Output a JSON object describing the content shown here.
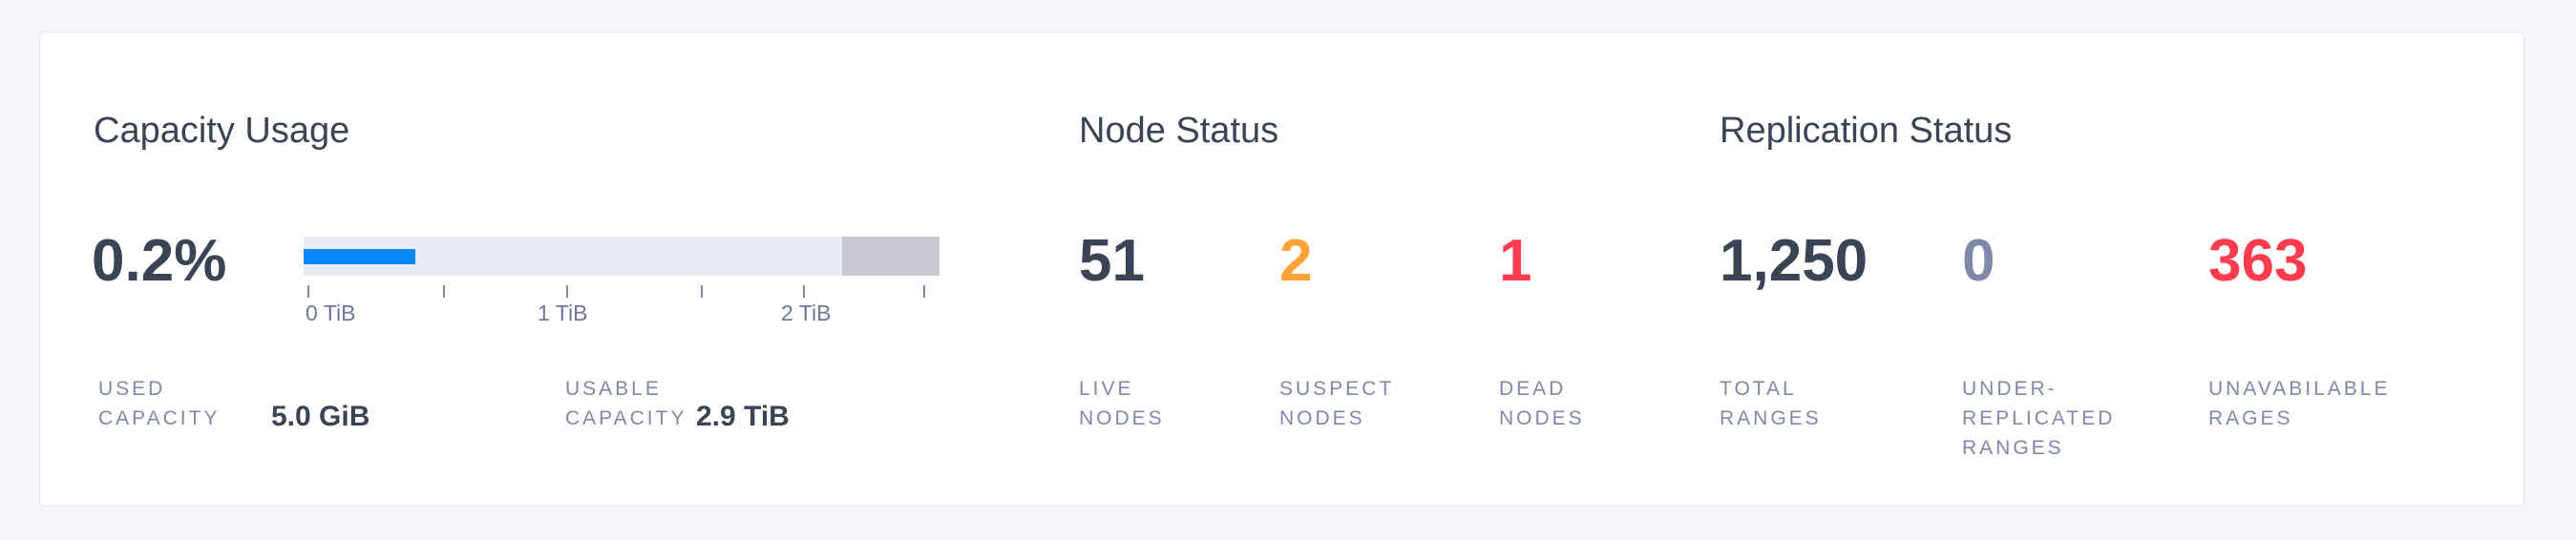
{
  "capacity": {
    "title": "Capacity Usage",
    "percent": "0.2%",
    "used_fraction": 0.002,
    "bar_visual_fill_fraction": 0.176,
    "reserved_fraction": 0.153,
    "axis_ticks": [
      "0 TiB",
      "1 TiB",
      "2 TiB"
    ],
    "used_label": "USED CAPACITY",
    "used_value": "5.0 GiB",
    "usable_label": "USABLE CAPACITY",
    "usable_value": "2.9 TiB"
  },
  "node_status": {
    "title": "Node Status",
    "live": {
      "value": "51",
      "label": "LIVE NODES"
    },
    "suspect": {
      "value": "2",
      "label": "SUSPECT NODES"
    },
    "dead": {
      "value": "1",
      "label": "DEAD NODES"
    }
  },
  "replication_status": {
    "title": "Replication Status",
    "total": {
      "value": "1,250",
      "label": "TOTAL RANGES"
    },
    "under": {
      "value": "0",
      "label": "UNDER-REPLICATED RANGES"
    },
    "unavailable": {
      "value": "363",
      "label": "UNAVABILABLE RAGES"
    }
  },
  "colors": {
    "text": "#394455",
    "muted": "#7e89a9",
    "warning": "#ffa338",
    "danger": "#ff3b4e",
    "accent": "#0788ff"
  }
}
